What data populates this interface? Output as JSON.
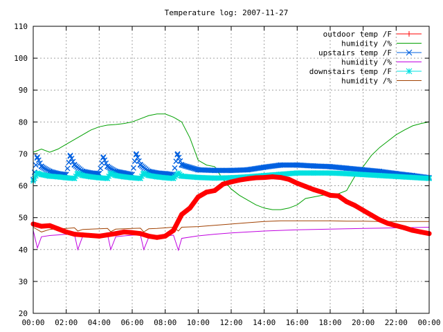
{
  "chart_data": {
    "type": "line",
    "title": "Temperature log: 2007-11-27",
    "xlabel": "",
    "ylabel": "",
    "x_ticks": [
      "00:00",
      "02:00",
      "04:00",
      "06:00",
      "08:00",
      "10:00",
      "12:00",
      "14:00",
      "16:00",
      "18:00",
      "20:00",
      "22:00",
      "00:00"
    ],
    "y_ticks": [
      "20",
      "30",
      "40",
      "50",
      "60",
      "70",
      "80",
      "90",
      "100",
      "110"
    ],
    "xlim_hours": [
      0,
      24
    ],
    "ylim": [
      20,
      110
    ],
    "grid": true,
    "legend_position": "top-right",
    "series": [
      {
        "name": "outdoor temp /F",
        "color": "#ff0000",
        "style": "linespoints-thick",
        "x_hours": [
          0,
          0.5,
          1,
          1.5,
          2,
          2.5,
          3,
          3.5,
          4,
          4.5,
          5,
          5.5,
          6,
          6.5,
          7,
          7.5,
          8,
          8.5,
          9,
          9.5,
          10,
          10.5,
          11,
          11.5,
          12,
          12.5,
          13,
          13.5,
          14,
          14.5,
          15,
          15.5,
          16,
          16.5,
          17,
          17.5,
          18,
          18.5,
          19,
          19.5,
          20,
          20.5,
          21,
          21.5,
          22,
          22.5,
          23,
          23.5,
          24
        ],
        "values": [
          48,
          47.3,
          47.5,
          46.5,
          45.5,
          44.8,
          44.6,
          44.4,
          44.2,
          44.6,
          45,
          45.5,
          45.3,
          45,
          44.2,
          43.8,
          44.2,
          46,
          51,
          53,
          56.5,
          58,
          58.5,
          60.5,
          61.2,
          61.8,
          62.2,
          62.5,
          62.6,
          62.8,
          62.6,
          62,
          60.8,
          59.8,
          58.8,
          58,
          57,
          56.8,
          55,
          53.8,
          52.3,
          50.8,
          49.3,
          48.2,
          47.5,
          46.8,
          46,
          45.5,
          45
        ]
      },
      {
        "name": "humidity /%",
        "color": "#00a000",
        "style": "line",
        "x_hours": [
          0,
          0.5,
          1,
          1.5,
          2,
          2.5,
          3,
          3.5,
          4,
          4.5,
          5,
          5.5,
          6,
          6.5,
          7,
          7.5,
          8,
          8.5,
          9,
          9.5,
          10,
          10.5,
          11,
          11.5,
          12,
          12.5,
          13,
          13.5,
          14,
          14.5,
          15,
          15.5,
          16,
          16.5,
          17,
          17.5,
          18,
          18.5,
          19,
          19.5,
          20,
          20.5,
          21,
          21.5,
          22,
          22.5,
          23,
          23.5,
          24
        ],
        "values": [
          70.5,
          71.5,
          70.5,
          71.5,
          73,
          74.5,
          76,
          77.5,
          78.5,
          79,
          79.2,
          79.5,
          80,
          81,
          82,
          82.5,
          82.5,
          81.5,
          80,
          75,
          68,
          66.5,
          66,
          62,
          59,
          57,
          55.5,
          54,
          53,
          52.5,
          52.5,
          53,
          54,
          56,
          56.5,
          57,
          57.3,
          57.5,
          58.5,
          63,
          66,
          69.5,
          72,
          74,
          76,
          77.5,
          78.8,
          79.5,
          80
        ]
      },
      {
        "name": "upstairs temp /F",
        "color": "#0060e0",
        "style": "points-x",
        "x_hours": [
          0,
          0.25,
          0.5,
          1,
          1.5,
          2,
          2.25,
          2.5,
          3,
          3.5,
          4,
          4.25,
          4.5,
          5,
          5.5,
          6,
          6.25,
          6.5,
          7,
          7.5,
          8,
          8.5,
          8.75,
          9,
          10,
          11,
          12,
          13,
          14,
          15,
          16,
          17,
          18,
          19,
          20,
          21,
          22,
          23,
          24
        ],
        "values": [
          62,
          69,
          66,
          64.5,
          63.8,
          63.5,
          69.5,
          66.5,
          64.5,
          64,
          63.8,
          69,
          66,
          64.5,
          64,
          63.5,
          70,
          66.5,
          64.5,
          64,
          63.8,
          63.5,
          70,
          66.5,
          65,
          64.8,
          64.8,
          65,
          65.8,
          66.5,
          66.5,
          66.2,
          66,
          65.5,
          65,
          64.5,
          63.8,
          63.2,
          62.5
        ]
      },
      {
        "name": "humidity /%",
        "color": "#c000e0",
        "style": "line",
        "x_hours": [
          0,
          0.25,
          0.5,
          1,
          1.5,
          2,
          2.5,
          2.7,
          3,
          3.5,
          4,
          4.5,
          4.7,
          5,
          5.5,
          6,
          6.5,
          6.7,
          7,
          7.5,
          8,
          8.5,
          8.8,
          9,
          10,
          11,
          12,
          13,
          14,
          15,
          16,
          17,
          18,
          19,
          20,
          21,
          22,
          23,
          24
        ],
        "values": [
          46,
          40.5,
          44,
          44.4,
          44.6,
          44.8,
          44.8,
          40,
          44.2,
          44.6,
          44.7,
          44.8,
          40,
          44,
          44.3,
          44.5,
          44.6,
          40,
          43.8,
          44,
          44.3,
          44.5,
          39.8,
          43.5,
          44.3,
          44.8,
          45.2,
          45.5,
          45.8,
          46,
          46.2,
          46.3,
          46.4,
          46.5,
          46.6,
          46.7,
          46.8,
          46.9,
          47
        ]
      },
      {
        "name": "downstairs temp /F",
        "color": "#00e0e0",
        "style": "points-star",
        "x_hours": [
          0,
          0.25,
          0.5,
          1,
          1.5,
          2,
          2.5,
          2.7,
          3,
          3.5,
          4,
          4.5,
          4.7,
          5,
          5.5,
          6,
          6.5,
          6.7,
          7,
          7.5,
          8,
          8.5,
          8.8,
          9,
          10,
          11,
          12,
          13,
          14,
          15,
          16,
          17,
          18,
          19,
          20,
          21,
          22,
          23,
          24
        ],
        "values": [
          61.5,
          64,
          63.5,
          63,
          62.8,
          62.5,
          62.3,
          64,
          63.2,
          62.8,
          62.5,
          62.3,
          64,
          63.2,
          62.8,
          62.5,
          62.3,
          64,
          63.2,
          62.8,
          62.5,
          62.3,
          64,
          63,
          62.6,
          62.4,
          62.5,
          62.8,
          63.2,
          63.6,
          64,
          64,
          64,
          63.8,
          63.5,
          63.2,
          62.9,
          62.6,
          62.3
        ]
      },
      {
        "name": "humidity /%",
        "color": "#a04000",
        "style": "line",
        "x_hours": [
          0,
          0.5,
          1,
          1.5,
          2,
          2.5,
          2.7,
          3,
          3.5,
          4,
          4.5,
          4.7,
          5,
          5.5,
          6,
          6.5,
          6.7,
          7,
          7.5,
          8,
          8.5,
          8.8,
          9,
          10,
          11,
          12,
          13,
          14,
          15,
          16,
          17,
          18,
          19,
          20,
          21,
          22,
          23,
          24
        ],
        "values": [
          47,
          45.5,
          46.3,
          46.5,
          46.6,
          46.8,
          45.8,
          46.3,
          46.4,
          46.5,
          46.6,
          45.6,
          46.4,
          46.5,
          46.6,
          46.7,
          45.5,
          46.5,
          46.6,
          46.8,
          47,
          45.8,
          47,
          47.2,
          47.6,
          48,
          48.4,
          48.8,
          49,
          49,
          49,
          49,
          48.9,
          48.9,
          48.8,
          48.8,
          48.8,
          48.8
        ]
      }
    ]
  }
}
